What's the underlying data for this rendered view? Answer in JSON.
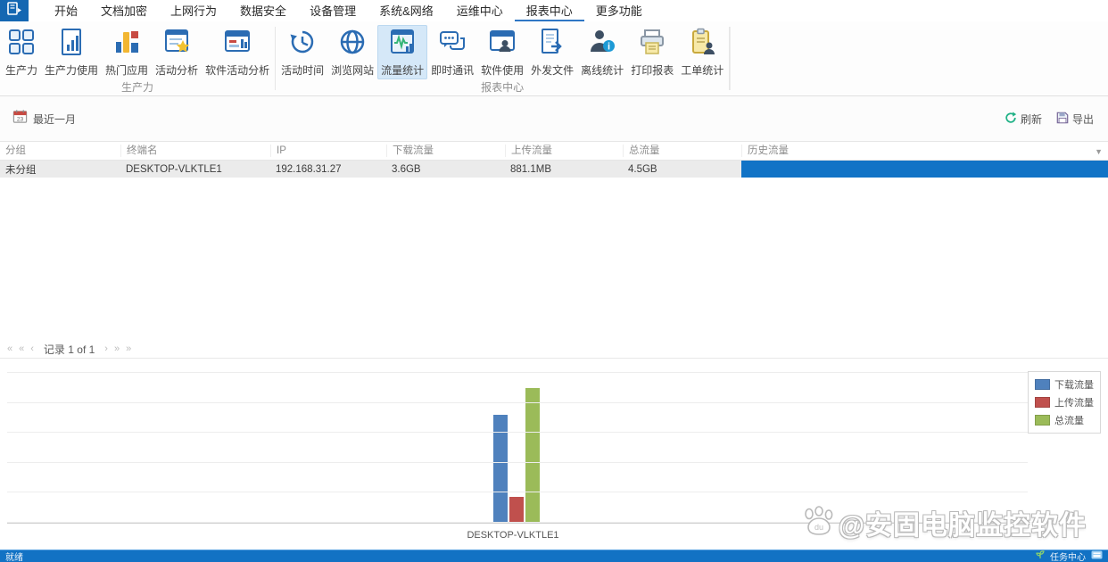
{
  "menubar": {
    "tabs": [
      {
        "label": "开始"
      },
      {
        "label": "文档加密"
      },
      {
        "label": "上网行为"
      },
      {
        "label": "数据安全"
      },
      {
        "label": "设备管理"
      },
      {
        "label": "系统&网络"
      },
      {
        "label": "运维中心"
      },
      {
        "label": "报表中心"
      },
      {
        "label": "更多功能"
      }
    ],
    "active_tab": "报表中心"
  },
  "ribbon": {
    "groups": [
      {
        "label": "生产力",
        "buttons": [
          {
            "label": "生产力",
            "icon": "productivity-grid-icon"
          },
          {
            "label": "生产力使用",
            "icon": "productivity-usage-icon"
          },
          {
            "label": "热门应用",
            "icon": "hot-apps-icon"
          },
          {
            "label": "活动分析",
            "icon": "activity-analysis-icon"
          },
          {
            "label": "软件活动分析",
            "icon": "software-activity-icon"
          }
        ]
      },
      {
        "label": "报表中心",
        "buttons": [
          {
            "label": "活动时间",
            "icon": "activity-time-icon"
          },
          {
            "label": "浏览网站",
            "icon": "browse-website-icon"
          },
          {
            "label": "流量统计",
            "icon": "traffic-stats-icon",
            "selected": true
          },
          {
            "label": "即时通讯",
            "icon": "instant-messaging-icon"
          },
          {
            "label": "软件使用",
            "icon": "software-usage-icon"
          },
          {
            "label": "外发文件",
            "icon": "outgoing-files-icon"
          },
          {
            "label": "离线统计",
            "icon": "offline-stats-icon"
          },
          {
            "label": "打印报表",
            "icon": "print-report-icon"
          },
          {
            "label": "工单统计",
            "icon": "work-order-icon"
          }
        ]
      }
    ],
    "selected_button": "流量统计"
  },
  "toolbar": {
    "date_filter": "最近一月",
    "refresh": "刷新",
    "export": "导出"
  },
  "table": {
    "columns": [
      "分组",
      "终端名",
      "IP",
      "下载流量",
      "上传流量",
      "总流量",
      "历史流量"
    ],
    "rows": [
      {
        "group": "未分组",
        "terminal": "DESKTOP-VLKTLE1",
        "ip": "192.168.31.27",
        "download": "3.6GB",
        "upload": "881.1MB",
        "total": "4.5GB",
        "history_percent": 100
      }
    ]
  },
  "pagination": {
    "record_label": "记录 1 of 1"
  },
  "chart_data": {
    "type": "bar",
    "categories": [
      "DESKTOP-VLKTLE1"
    ],
    "series": [
      {
        "name": "下载流量",
        "values_gb": [
          3.6
        ],
        "color": "#4f81bd"
      },
      {
        "name": "上传流量",
        "values_gb": [
          0.86
        ],
        "color": "#c0504d"
      },
      {
        "name": "总流量",
        "values_gb": [
          4.5
        ],
        "color": "#9bbb59"
      }
    ],
    "unit": "GB",
    "ylim": [
      0,
      5
    ],
    "gridline_step": 1,
    "grid": true,
    "legend_position": "top-right",
    "title": "",
    "xlabel": "",
    "ylabel": ""
  },
  "watermark": {
    "text": "@安固电脑监控软件"
  },
  "statusbar": {
    "ready": "就绪",
    "task_center": "任务中心"
  }
}
